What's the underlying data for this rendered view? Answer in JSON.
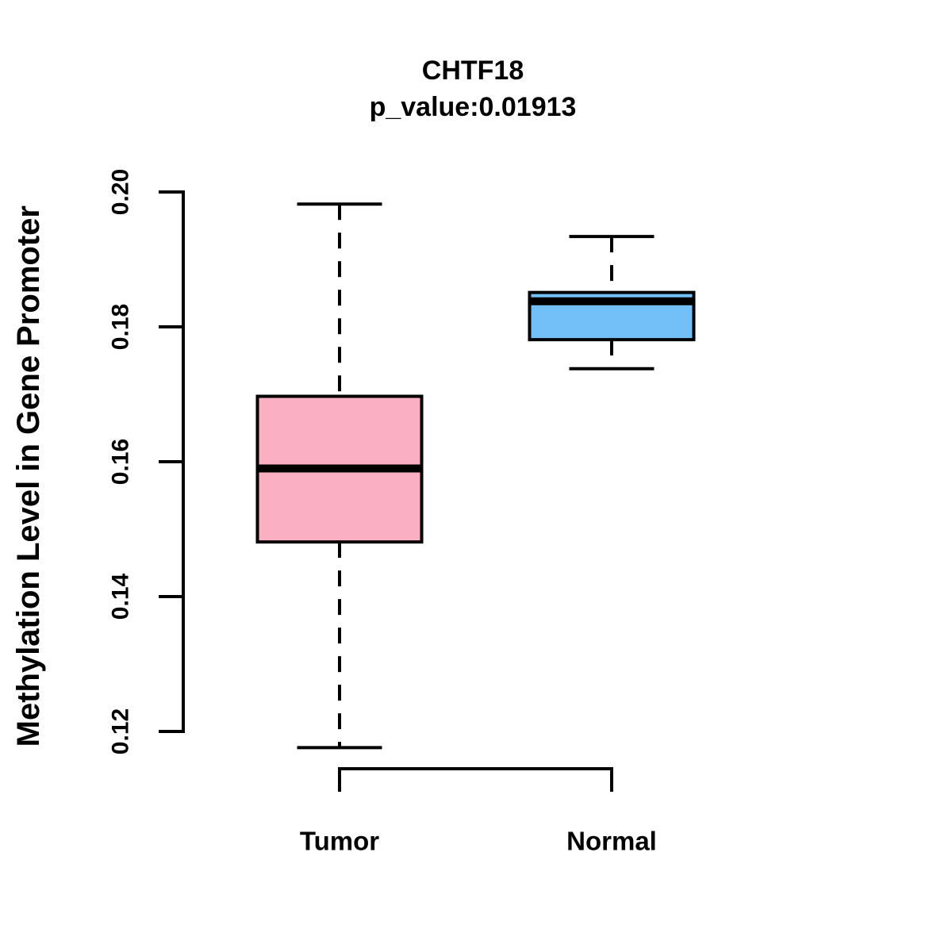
{
  "chart_data": {
    "type": "boxplot",
    "title": "CHTF18",
    "subtitle": "p_value:0.01913",
    "ylabel": "Methylation Level in Gene Promoter",
    "xlabel": "",
    "ylim": [
      0.12,
      0.2
    ],
    "yticks": [
      "0.12",
      "0.14",
      "0.16",
      "0.18",
      "0.20"
    ],
    "grid": false,
    "legend": "none",
    "categories": [
      "Tumor",
      "Normal"
    ],
    "series": [
      {
        "name": "Tumor",
        "color": "#FBAFC2",
        "whisker_low": 0.1176,
        "q1": 0.1481,
        "median": 0.159,
        "q3": 0.1697,
        "whisker_high": 0.1982
      },
      {
        "name": "Normal",
        "color": "#73BFF8",
        "whisker_low": 0.1738,
        "q1": 0.1781,
        "median": 0.1838,
        "q3": 0.1851,
        "whisker_high": 0.1934
      }
    ],
    "stroke_color": "#000000",
    "background_color": "#FFFFFF"
  }
}
